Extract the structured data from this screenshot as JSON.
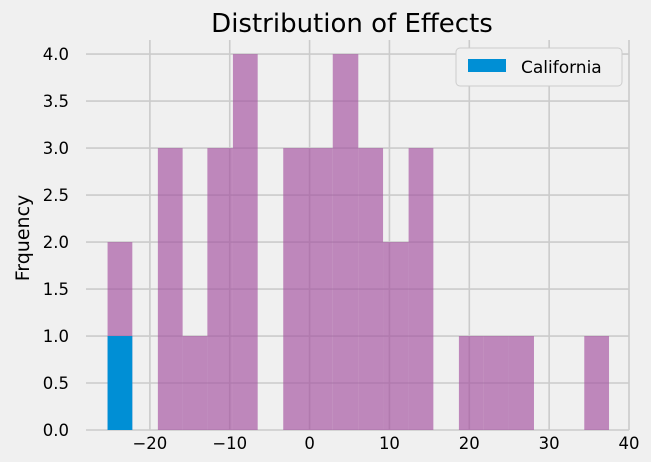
{
  "chart_data": {
    "type": "bar",
    "title": "Distribution of Effects",
    "xlabel": "",
    "ylabel": "Frquency",
    "xlim": [
      -28,
      40
    ],
    "ylim": [
      0,
      4.15
    ],
    "xticks": [
      -20,
      -10,
      0,
      10,
      20,
      30,
      40
    ],
    "xtick_labels": [
      "−20",
      "−10",
      "0",
      "10",
      "20",
      "30",
      "40"
    ],
    "yticks": [
      0,
      0.5,
      1,
      1.5,
      2,
      2.5,
      3,
      3.5,
      4
    ],
    "ytick_labels": [
      "0.0",
      "0.5",
      "1.0",
      "1.5",
      "2.0",
      "2.5",
      "3.0",
      "3.5",
      "4.0"
    ],
    "grid": true,
    "legend_position": "top-right",
    "series": [
      {
        "color": "#a34f9e",
        "opacity": 0.65,
        "bins": [
          {
            "x0": -25.3,
            "x1": -22.2,
            "value": 2
          },
          {
            "x0": -19.0,
            "x1": -15.9,
            "value": 3
          },
          {
            "x0": -15.9,
            "x1": -12.8,
            "value": 1
          },
          {
            "x0": -12.8,
            "x1": -9.6,
            "value": 3
          },
          {
            "x0": -9.6,
            "x1": -6.5,
            "value": 4
          },
          {
            "x0": -3.3,
            "x1": -0.2,
            "value": 3
          },
          {
            "x0": -0.2,
            "x1": 2.9,
            "value": 3
          },
          {
            "x0": 2.9,
            "x1": 6.1,
            "value": 4
          },
          {
            "x0": 6.1,
            "x1": 9.2,
            "value": 3
          },
          {
            "x0": 9.2,
            "x1": 12.4,
            "value": 2
          },
          {
            "x0": 12.4,
            "x1": 15.5,
            "value": 3
          },
          {
            "x0": 18.7,
            "x1": 21.8,
            "value": 1
          },
          {
            "x0": 21.8,
            "x1": 24.9,
            "value": 1
          },
          {
            "x0": 24.9,
            "x1": 28.1,
            "value": 1
          },
          {
            "x0": 34.4,
            "x1": 37.5,
            "value": 1
          }
        ]
      },
      {
        "name": "California",
        "color": "#008fd5",
        "opacity": 1,
        "bins": [
          {
            "x0": -25.3,
            "x1": -22.2,
            "value": 1
          }
        ]
      }
    ]
  }
}
